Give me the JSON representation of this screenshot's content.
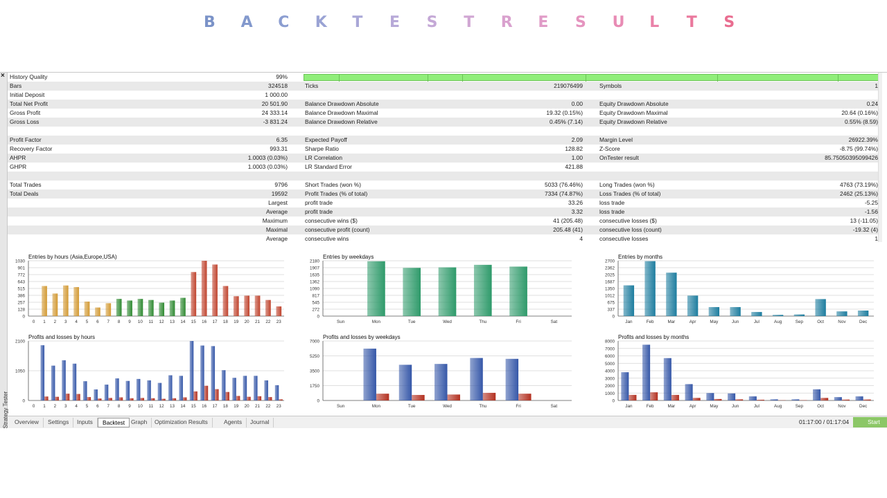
{
  "banner": {
    "letters": [
      "B",
      "A",
      "C",
      "K",
      "T",
      "E",
      "S",
      "T",
      "R",
      "E",
      "S",
      "U",
      "L",
      "T",
      "S"
    ],
    "colors": [
      "#7b93c8",
      "#8399cd",
      "#8c9ed1",
      "#9aa3d4",
      "#a9a7d7",
      "#b7a9d8",
      "#c4a8d6",
      "#d0a6d3",
      "#d9a1ce",
      "#e09bc7",
      "#e594bf",
      "#e88bb4",
      "#ea82a9",
      "#ea789d",
      "#e96d90"
    ]
  },
  "window": {
    "close_glyph": "×",
    "side_label": "Strategy Tester"
  },
  "stats": {
    "rows": [
      {
        "c1l": "History Quality",
        "c1v": "99%",
        "bar": true
      },
      {
        "c1l": "Bars",
        "c1v": "324518",
        "c2l": "Ticks",
        "c2v": "219076499",
        "c3l": "Symbols",
        "c3v": "1"
      },
      {
        "c1l": "Initial Deposit",
        "c1v": "1 000.00"
      },
      {
        "c1l": "Total Net Profit",
        "c1v": "20 501.90",
        "c2l": "Balance Drawdown Absolute",
        "c2v": "0.00",
        "c3l": "Equity Drawdown Absolute",
        "c3v": "0.24"
      },
      {
        "c1l": "Gross Profit",
        "c1v": "24 333.14",
        "c2l": "Balance Drawdown Maximal",
        "c2v": "19.32 (0.15%)",
        "c3l": "Equity Drawdown Maximal",
        "c3v": "20.64 (0.16%)"
      },
      {
        "c1l": "Gross Loss",
        "c1v": "-3 831.24",
        "c2l": "Balance Drawdown Relative",
        "c2v": "0.45% (7.14)",
        "c3l": "Equity Drawdown Relative",
        "c3v": "0.55% (8.59)"
      },
      {},
      {
        "c1l": "Profit Factor",
        "c1v": "6.35",
        "c2l": "Expected Payoff",
        "c2v": "2.09",
        "c3l": "Margin Level",
        "c3v": "26922.39%"
      },
      {
        "c1l": "Recovery Factor",
        "c1v": "993.31",
        "c2l": "Sharpe Ratio",
        "c2v": "128.82",
        "c3l": "Z-Score",
        "c3v": "-8.75 (99.74%)"
      },
      {
        "c1l": "AHPR",
        "c1v": "1.0003 (0.03%)",
        "c2l": "LR Correlation",
        "c2v": "1.00",
        "c3l": "OnTester result",
        "c3v": "85.75050395099426"
      },
      {
        "c1l": "GHPR",
        "c1v": "1.0003 (0.03%)",
        "c2l": "LR Standard Error",
        "c2v": "421.88"
      },
      {},
      {
        "c1l": "Total Trades",
        "c1v": "9796",
        "c2l": "Short Trades (won %)",
        "c2v": "5033 (76.46%)",
        "c3l": "Long Trades (won %)",
        "c3v": "4763 (73.19%)"
      },
      {
        "c1l": "Total Deals",
        "c1v": "19592",
        "c2l": "Profit Trades (% of total)",
        "c2v": "7334 (74.87%)",
        "c3l": "Loss Trades (% of total)",
        "c3v": "2462 (25.13%)"
      },
      {
        "c1v": "Largest",
        "c2l": "profit trade",
        "c2v": "33.26",
        "c3l": "loss trade",
        "c3v": "-5.25"
      },
      {
        "c1v": "Average",
        "c2l": "profit trade",
        "c2v": "3.32",
        "c3l": "loss trade",
        "c3v": "-1.56"
      },
      {
        "c1v": "Maximum",
        "c2l": "consecutive wins ($)",
        "c2v": "41 (205.48)",
        "c3l": "consecutive losses ($)",
        "c3v": "13 (-11.05)"
      },
      {
        "c1v": "Maximal",
        "c2l": "consecutive profit (count)",
        "c2v": "205.48 (41)",
        "c3l": "consecutive loss (count)",
        "c3v": "-19.32 (4)"
      },
      {
        "c1v": "Average",
        "c2l": "consecutive wins",
        "c2v": "4",
        "c3l": "consecutive losses",
        "c3v": "1"
      }
    ]
  },
  "chart_data": [
    {
      "type": "bar",
      "title": "Entries by hours (Asia,Europe,USA)",
      "categories": [
        "0",
        "1",
        "2",
        "3",
        "4",
        "5",
        "6",
        "7",
        "8",
        "9",
        "10",
        "11",
        "12",
        "13",
        "14",
        "15",
        "16",
        "17",
        "18",
        "19",
        "20",
        "21",
        "22",
        "23"
      ],
      "values": [
        0,
        560,
        420,
        570,
        540,
        270,
        160,
        240,
        320,
        290,
        320,
        300,
        250,
        290,
        340,
        820,
        1030,
        960,
        560,
        370,
        380,
        380,
        300,
        180
      ],
      "yticks": [
        "0",
        "128",
        "257",
        "386",
        "515",
        "643",
        "772",
        "901",
        "1030"
      ],
      "ylim": [
        0,
        1030
      ],
      "colors": [
        "#d39a34",
        "#d39a34",
        "#d39a34",
        "#d39a34",
        "#d39a34",
        "#d39a34",
        "#d39a34",
        "#d39a34",
        "#2f8a32",
        "#2f8a32",
        "#2f8a32",
        "#2f8a32",
        "#2f8a32",
        "#2f8a32",
        "#2f8a32",
        "#c0442e",
        "#c0442e",
        "#c0442e",
        "#c0442e",
        "#c0442e",
        "#c0442e",
        "#c0442e",
        "#c0442e",
        "#c0442e"
      ]
    },
    {
      "type": "bar",
      "title": "Entries by weekdays",
      "categories": [
        "Sun",
        "Mon",
        "Tue",
        "Wed",
        "Thu",
        "Fri",
        "Sat"
      ],
      "values": [
        0,
        2160,
        1900,
        1920,
        2020,
        1950,
        0
      ],
      "yticks": [
        "0",
        "272",
        "545",
        "817",
        "1090",
        "1362",
        "1635",
        "1907",
        "2180"
      ],
      "ylim": [
        0,
        2180
      ],
      "colors": [
        "#2e9a6a"
      ]
    },
    {
      "type": "bar",
      "title": "Entries by months",
      "categories": [
        "Jan",
        "Feb",
        "Mar",
        "Apr",
        "May",
        "Jun",
        "Jul",
        "Aug",
        "Sep",
        "Oct",
        "Nov",
        "Dec"
      ],
      "values": [
        1500,
        2680,
        2120,
        1000,
        440,
        440,
        200,
        60,
        80,
        830,
        230,
        270
      ],
      "yticks": [
        "0",
        "337",
        "675",
        "1012",
        "1350",
        "1687",
        "2025",
        "2362",
        "2700"
      ],
      "ylim": [
        0,
        2700
      ],
      "colors": [
        "#1d7d9f"
      ]
    },
    {
      "type": "bar",
      "title": "Profits and losses by hours",
      "categories": [
        "0",
        "1",
        "2",
        "3",
        "4",
        "5",
        "6",
        "7",
        "8",
        "9",
        "10",
        "11",
        "12",
        "13",
        "14",
        "15",
        "16",
        "17",
        "18",
        "19",
        "20",
        "21",
        "22",
        "23"
      ],
      "series": [
        {
          "values": [
            0,
            1950,
            1230,
            1420,
            1300,
            680,
            390,
            560,
            780,
            690,
            760,
            710,
            620,
            890,
            870,
            2100,
            1940,
            1920,
            1070,
            800,
            870,
            870,
            710,
            540
          ]
        },
        {
          "values": [
            0,
            140,
            130,
            240,
            230,
            120,
            70,
            90,
            110,
            80,
            90,
            80,
            60,
            80,
            110,
            320,
            520,
            400,
            300,
            160,
            130,
            150,
            120,
            40
          ]
        }
      ],
      "yticks": [
        "0",
        "1050",
        "2100"
      ],
      "ylim": [
        0,
        2100
      ],
      "colors": [
        "#3557a8",
        "#b33020"
      ]
    },
    {
      "type": "bar",
      "title": "Profits and losses by weekdays",
      "categories": [
        "Sun",
        "Mon",
        "Tue",
        "Wed",
        "Thu",
        "Fri",
        "Sat"
      ],
      "series": [
        {
          "values": [
            0,
            6100,
            4200,
            4300,
            5000,
            4900,
            0
          ]
        },
        {
          "values": [
            0,
            800,
            650,
            700,
            900,
            800,
            0
          ]
        }
      ],
      "yticks": [
        "0",
        "1750",
        "3500",
        "5250",
        "7000"
      ],
      "ylim": [
        0,
        7000
      ],
      "colors": [
        "#3557a8",
        "#b33020"
      ]
    },
    {
      "type": "bar",
      "title": "Profits and losses by months",
      "categories": [
        "Jan",
        "Feb",
        "Mar",
        "Apr",
        "May",
        "Jun",
        "Jul",
        "Aug",
        "Sep",
        "Oct",
        "Nov",
        "Dec"
      ],
      "series": [
        {
          "values": [
            3800,
            7500,
            5700,
            2200,
            1000,
            950,
            550,
            150,
            150,
            1500,
            450,
            550
          ]
        },
        {
          "values": [
            750,
            1100,
            750,
            350,
            200,
            150,
            100,
            30,
            40,
            350,
            120,
            130
          ]
        }
      ],
      "yticks": [
        "0",
        "1000",
        "2000",
        "3000",
        "4000",
        "5000",
        "6000",
        "7000",
        "8000"
      ],
      "ylim": [
        0,
        8000
      ],
      "colors": [
        "#3557a8",
        "#b33020"
      ]
    }
  ],
  "tabs": [
    {
      "label": "Overview",
      "active": false
    },
    {
      "label": "Settings",
      "active": false
    },
    {
      "label": "Inputs",
      "active": false
    },
    {
      "label": "Backtest",
      "active": true
    },
    {
      "label": "Graph",
      "active": false
    },
    {
      "label": "Optimization Results",
      "active": false
    },
    {
      "label": "Agents",
      "active": false
    },
    {
      "label": "Journal",
      "active": false
    }
  ],
  "status": {
    "timer": "01:17:00 / 01:17:04",
    "start_label": "Start"
  }
}
